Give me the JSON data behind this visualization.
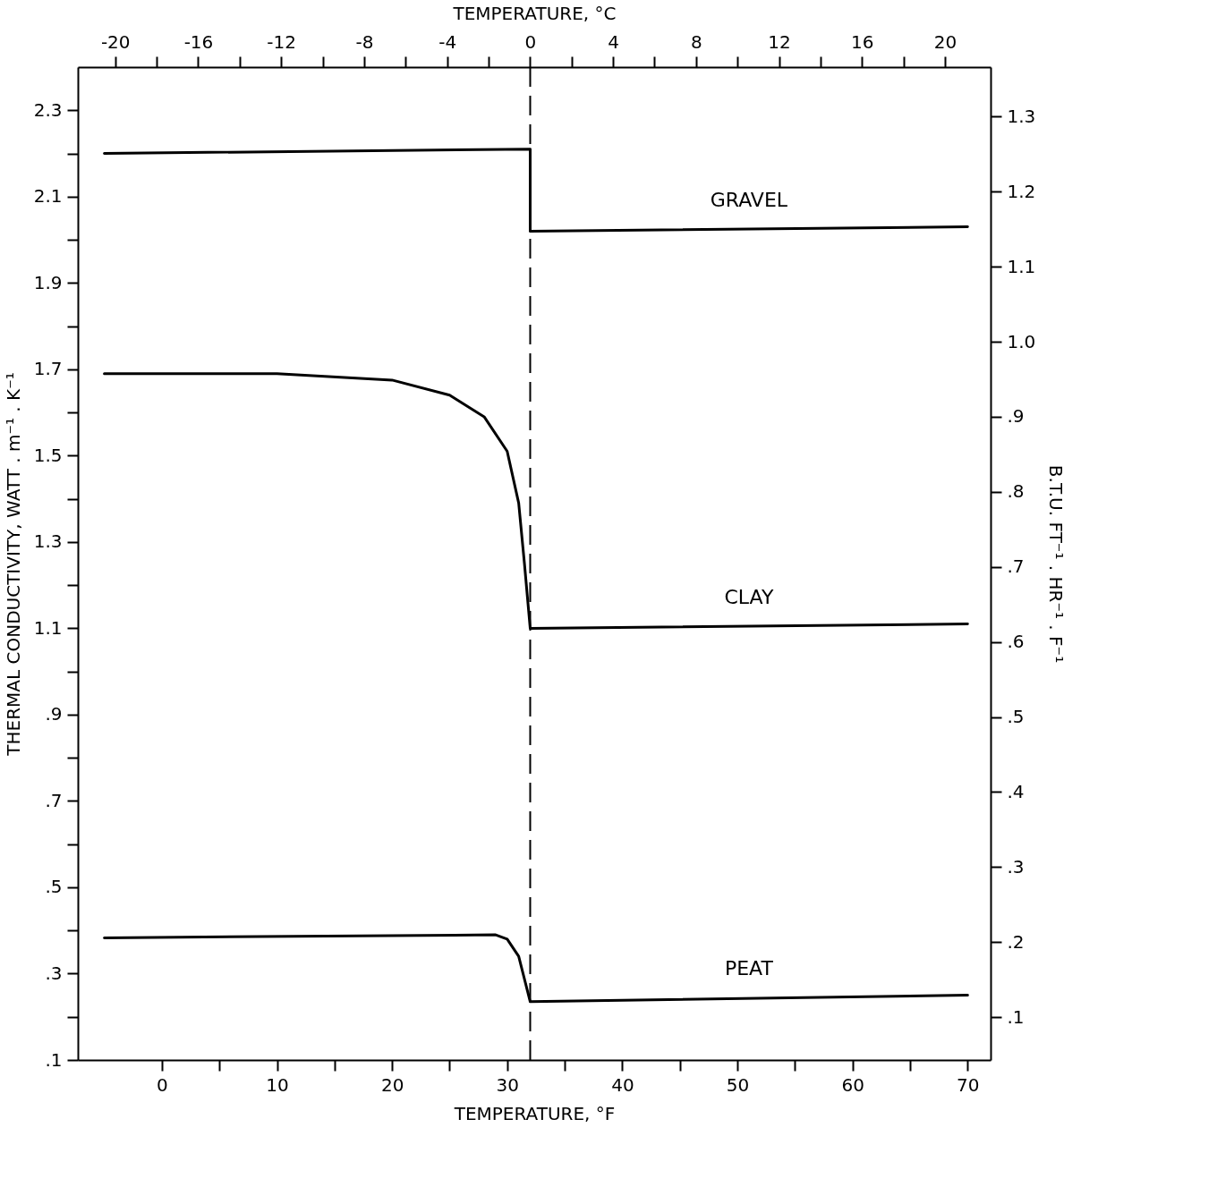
{
  "chart_data": {
    "type": "line",
    "xlabel": "TEMPERATURE, °F",
    "x2label": "TEMPERATURE, °C",
    "ylabel": "THERMAL CONDUCTIVITY, WATT . m⁻¹ . K⁻¹",
    "y2label": "B.T.U. FT⁻¹ . HR⁻¹ . F⁻¹",
    "xlim": [
      -7.3,
      72
    ],
    "xticks": [
      0,
      {
        "value": 5,
        "label": null
      },
      10,
      {
        "value": 15,
        "label": null
      },
      20,
      {
        "value": 25,
        "label": null
      },
      30,
      {
        "value": 35,
        "label": null
      },
      40,
      {
        "value": 45,
        "label": null
      },
      50,
      {
        "value": 55,
        "label": null
      },
      60,
      {
        "value": 65,
        "label": null
      },
      70
    ],
    "x2lim": [
      -21.8,
      22.2
    ],
    "x2ticks": [
      -20,
      {
        "value": -18,
        "label": null
      },
      -16,
      {
        "value": -14,
        "label": null
      },
      -12,
      {
        "value": -10,
        "label": null
      },
      -8,
      {
        "value": -6,
        "label": null
      },
      -4,
      {
        "value": -2,
        "label": null
      },
      0,
      {
        "value": 2,
        "label": null
      },
      4,
      {
        "value": 6,
        "label": null
      },
      8,
      {
        "value": 10,
        "label": null
      },
      12,
      {
        "value": 14,
        "label": null
      },
      16,
      {
        "value": 18,
        "label": null
      },
      20
    ],
    "ylim": [
      0.1,
      2.4
    ],
    "yticks": [
      {
        "value": 0.1,
        "label": ".1"
      },
      {
        "value": 0.2,
        "label": null
      },
      {
        "value": 0.3,
        "label": ".3"
      },
      {
        "value": 0.4,
        "label": null
      },
      {
        "value": 0.5,
        "label": ".5"
      },
      {
        "value": 0.6,
        "label": null
      },
      {
        "value": 0.7,
        "label": ".7"
      },
      {
        "value": 0.8,
        "label": null
      },
      {
        "value": 0.9,
        "label": ".9"
      },
      {
        "value": 1.0,
        "label": null
      },
      1.1,
      {
        "value": 1.2,
        "label": null
      },
      1.3,
      {
        "value": 1.4,
        "label": null
      },
      1.5,
      {
        "value": 1.6,
        "label": null
      },
      1.7,
      {
        "value": 1.8,
        "label": null
      },
      1.9,
      {
        "value": 2.0,
        "label": null
      },
      2.1,
      {
        "value": 2.2,
        "label": null
      },
      2.3
    ],
    "y2lim": [
      0.043,
      1.366
    ],
    "y2ticks": [
      {
        "value": 0.1,
        "label": ".1"
      },
      {
        "value": 0.2,
        "label": ".2"
      },
      {
        "value": 0.3,
        "label": ".3"
      },
      {
        "value": 0.4,
        "label": ".4"
      },
      {
        "value": 0.5,
        "label": ".5"
      },
      {
        "value": 0.6,
        "label": ".6"
      },
      {
        "value": 0.7,
        "label": ".7"
      },
      {
        "value": 0.8,
        "label": ".8"
      },
      {
        "value": 0.9,
        "label": ".9"
      },
      {
        "value": 1.0,
        "label": "1.0"
      },
      1.1,
      1.2,
      1.3
    ],
    "grid": false,
    "ref_lines": [
      {
        "axis": "x",
        "value": 32,
        "line_style": "dashed",
        "color": "#000000"
      }
    ],
    "series": [
      {
        "name": "GRAVEL",
        "color": "#000000",
        "x": [
          -5,
          32,
          32,
          70
        ],
        "values": [
          2.2,
          2.21,
          2.02,
          2.03
        ]
      },
      {
        "name": "CLAY",
        "color": "#000000",
        "x": [
          -5,
          10,
          20,
          25,
          28,
          30,
          31,
          31.5,
          32,
          70
        ],
        "values": [
          1.69,
          1.69,
          1.675,
          1.64,
          1.59,
          1.51,
          1.39,
          1.25,
          1.1,
          1.11
        ]
      },
      {
        "name": "PEAT",
        "color": "#000000",
        "x": [
          -5,
          29,
          30,
          31,
          32,
          70
        ],
        "values": [
          0.383,
          0.39,
          0.38,
          0.34,
          0.235,
          0.25
        ]
      }
    ]
  }
}
